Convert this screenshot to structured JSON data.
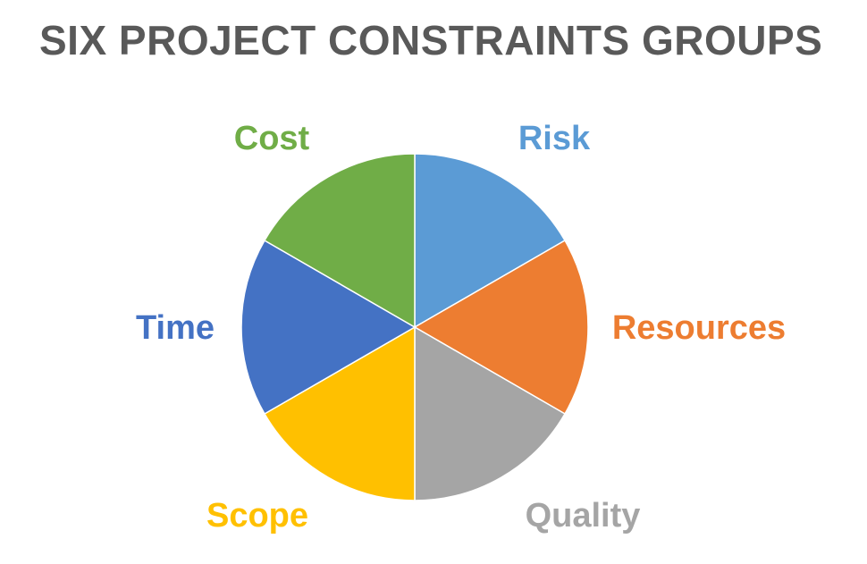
{
  "title": "SIX PROJECT CONSTRAINTS GROUPS",
  "chart_data": {
    "type": "pie",
    "title": "SIX PROJECT CONSTRAINTS GROUPS",
    "categories": [
      "Risk",
      "Resources",
      "Quality",
      "Scope",
      "Time",
      "Cost"
    ],
    "values": [
      1,
      1,
      1,
      1,
      1,
      1
    ],
    "colors": [
      "#5B9BD5",
      "#ED7D31",
      "#A5A5A5",
      "#FFC000",
      "#4472C4",
      "#70AD47"
    ],
    "start_angle": "12 o'clock",
    "direction": "clockwise",
    "legend": "none",
    "labels_outside": true
  }
}
